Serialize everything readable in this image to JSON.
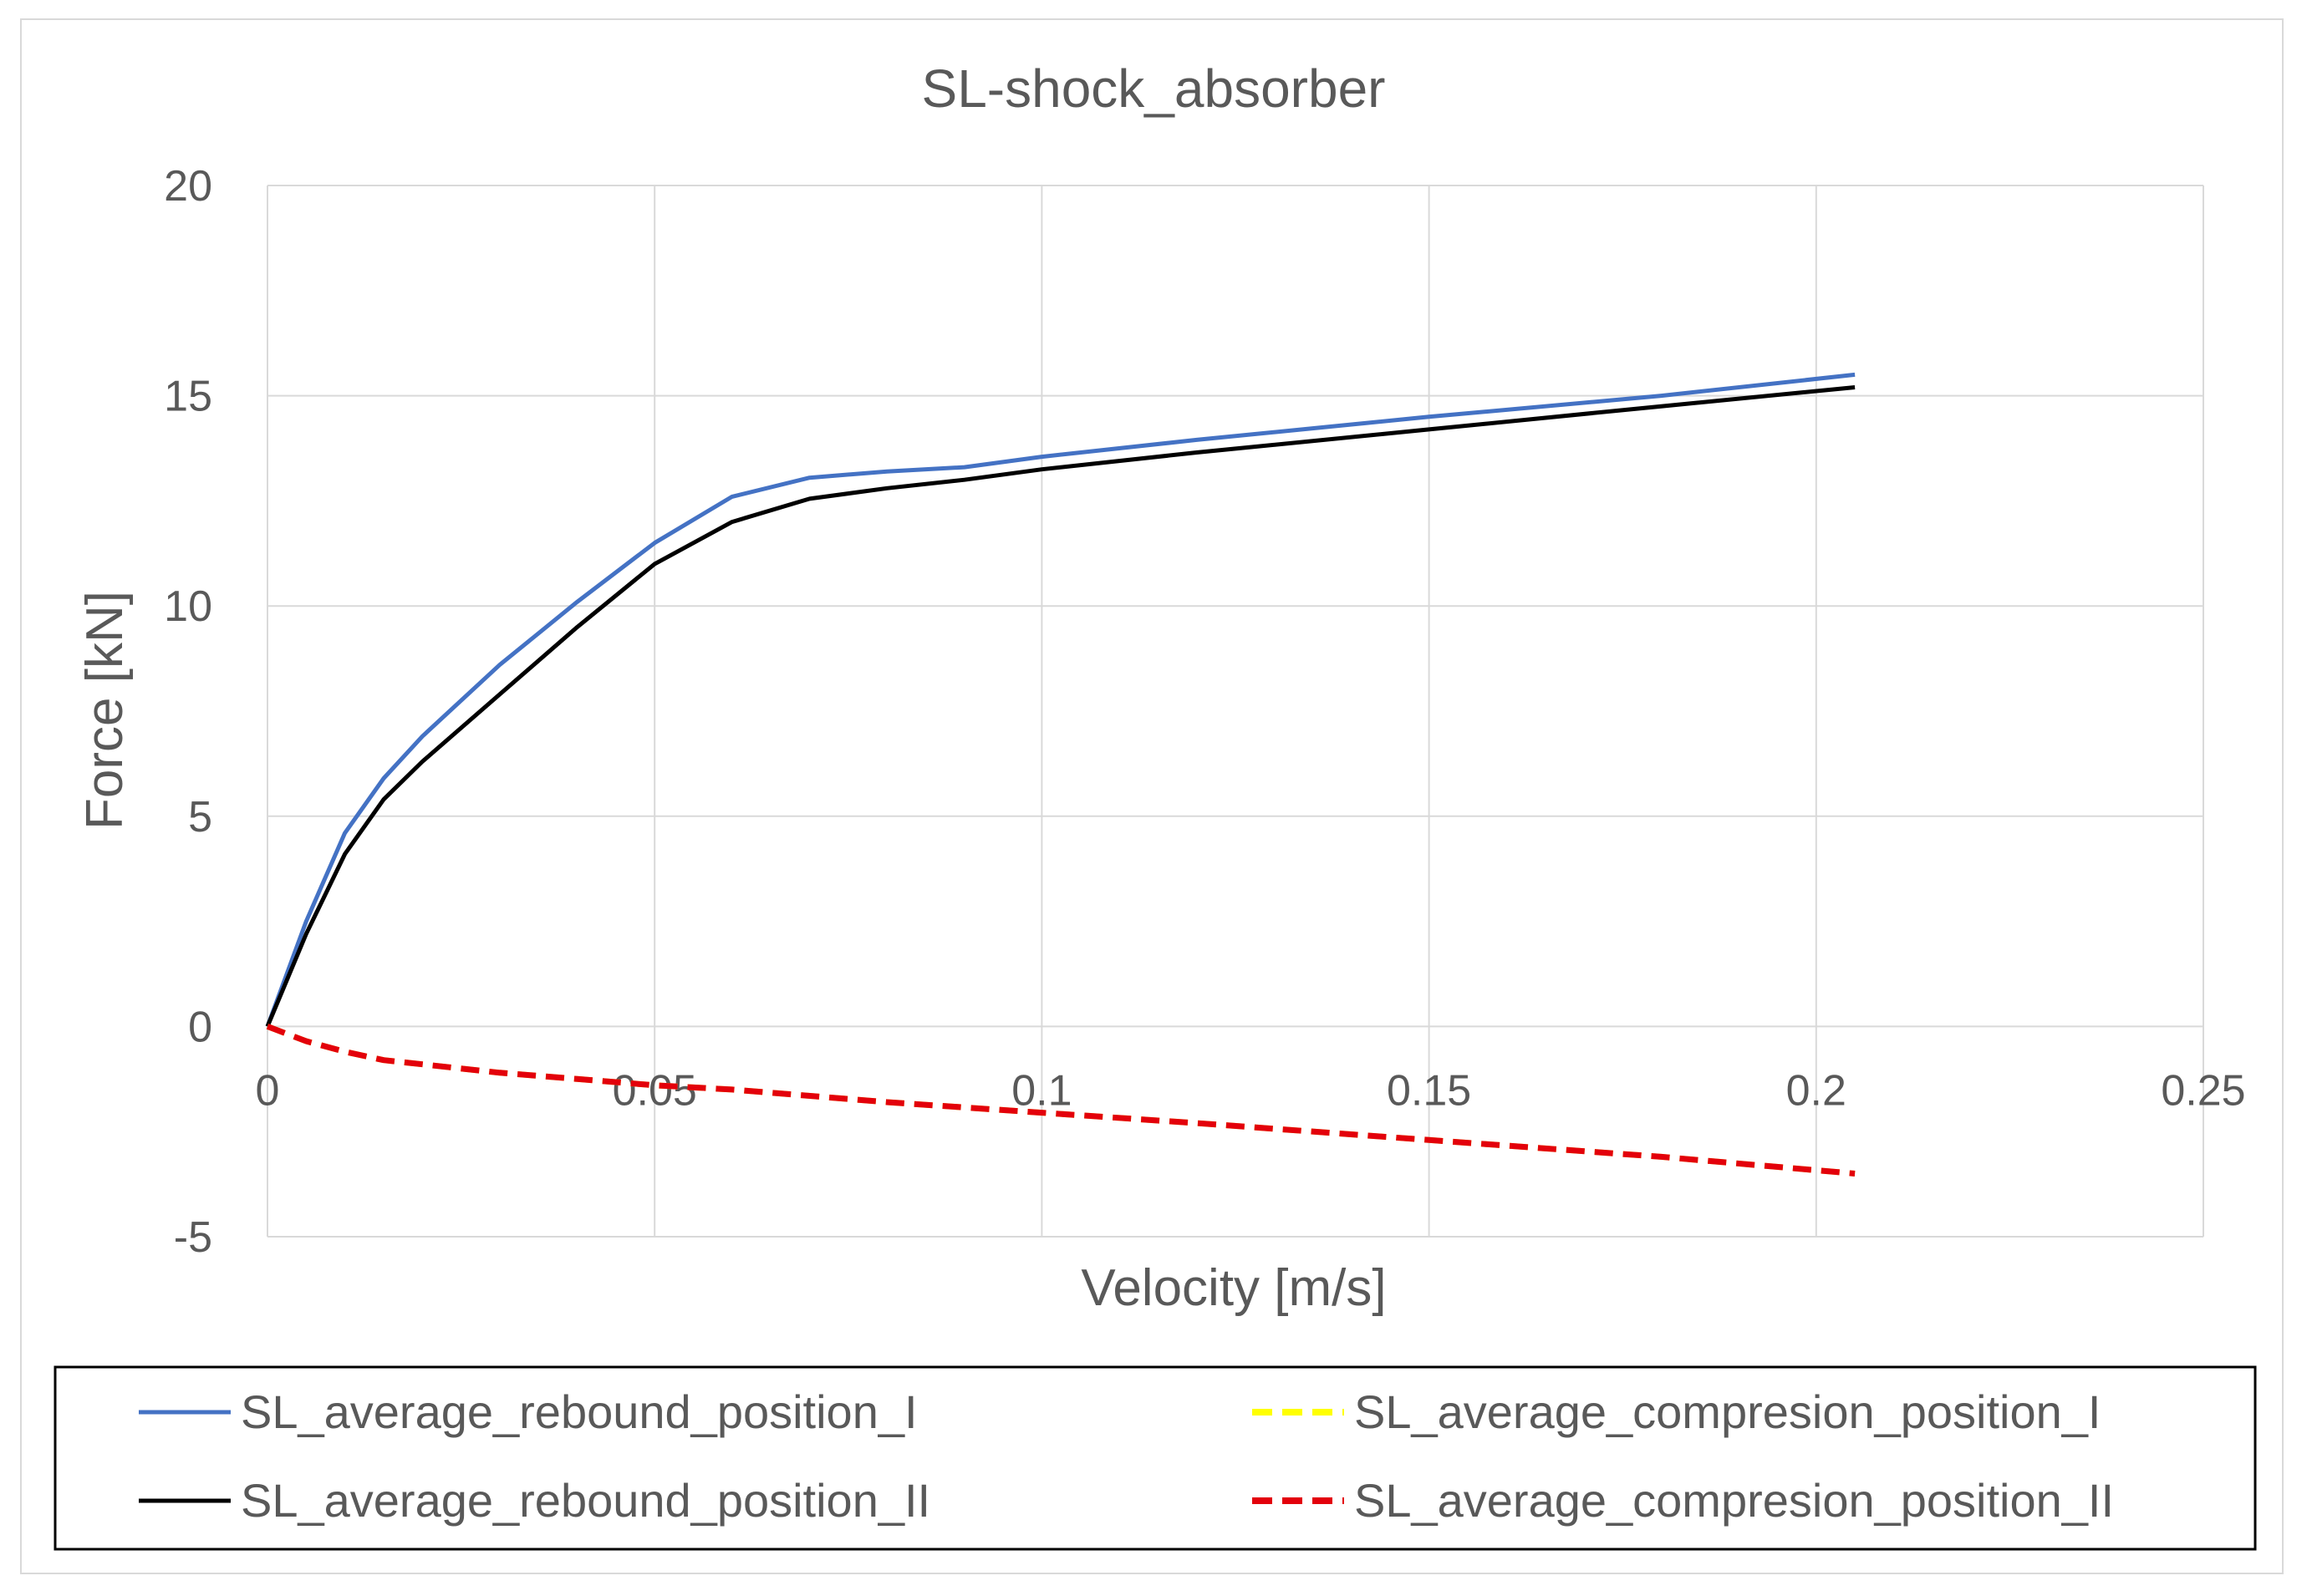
{
  "chart_data": {
    "type": "line",
    "title": "SL-shock_absorber",
    "xlabel": "Velocity [m/s]",
    "ylabel": "Force [kN]",
    "xlim": [
      0,
      0.25
    ],
    "ylim": [
      -5,
      20
    ],
    "xticks": [
      "0",
      "0.05",
      "0.1",
      "0.15",
      "0.2",
      "0.25"
    ],
    "yticks": [
      "-5",
      "0",
      "5",
      "10",
      "15",
      "20"
    ],
    "xtick_values": [
      0,
      0.05,
      0.1,
      0.15,
      0.2,
      0.25
    ],
    "ytick_values": [
      -5,
      0,
      5,
      10,
      15,
      20
    ],
    "grid": true,
    "legend_position": "bottom",
    "series": [
      {
        "name": "SL_average_rebound_position_I",
        "color": "#4472c4",
        "dash": "solid",
        "x": [
          0,
          0.005,
          0.01,
          0.015,
          0.02,
          0.03,
          0.04,
          0.05,
          0.06,
          0.07,
          0.08,
          0.09,
          0.1,
          0.12,
          0.15,
          0.18,
          0.205
        ],
        "y": [
          0,
          2.5,
          4.6,
          5.9,
          6.9,
          8.6,
          10.1,
          11.5,
          12.6,
          13.05,
          13.2,
          13.3,
          13.55,
          13.95,
          14.5,
          15.0,
          15.5
        ]
      },
      {
        "name": "SL_average_compresion_position_I",
        "color": "#ffff00",
        "dash": "dashed",
        "x": [
          0,
          0.005,
          0.01,
          0.015,
          0.02,
          0.03,
          0.04,
          0.05,
          0.06,
          0.08,
          0.1,
          0.12,
          0.15,
          0.18,
          0.205
        ],
        "y": [
          0,
          -0.35,
          -0.6,
          -0.8,
          -0.9,
          -1.1,
          -1.25,
          -1.4,
          -1.5,
          -1.8,
          -2.05,
          -2.3,
          -2.7,
          -3.1,
          -3.5
        ]
      },
      {
        "name": "SL_average_rebound_position_II",
        "color": "#000000",
        "dash": "solid",
        "x": [
          0,
          0.005,
          0.01,
          0.015,
          0.02,
          0.03,
          0.04,
          0.05,
          0.06,
          0.07,
          0.08,
          0.09,
          0.1,
          0.12,
          0.15,
          0.18,
          0.205
        ],
        "y": [
          0,
          2.2,
          4.1,
          5.4,
          6.3,
          7.9,
          9.5,
          11.0,
          12.0,
          12.55,
          12.8,
          13.0,
          13.25,
          13.65,
          14.2,
          14.75,
          15.2
        ]
      },
      {
        "name": "SL_average_compresion_position_II",
        "color": "#e3000b",
        "dash": "dashed",
        "x": [
          0,
          0.005,
          0.01,
          0.015,
          0.02,
          0.03,
          0.04,
          0.05,
          0.06,
          0.08,
          0.1,
          0.12,
          0.15,
          0.18,
          0.205
        ],
        "y": [
          0,
          -0.35,
          -0.6,
          -0.8,
          -0.9,
          -1.1,
          -1.25,
          -1.4,
          -1.5,
          -1.8,
          -2.05,
          -2.3,
          -2.7,
          -3.1,
          -3.5
        ]
      }
    ]
  }
}
